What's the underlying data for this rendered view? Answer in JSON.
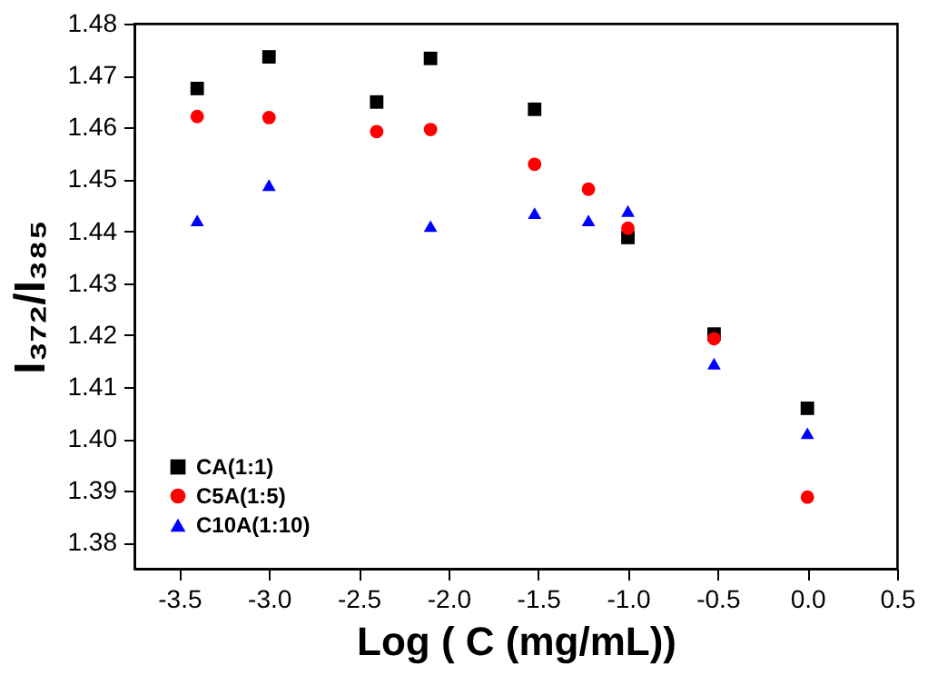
{
  "chart_data": {
    "type": "scatter",
    "xlabel": "Log ( C (mg/mL))",
    "ylabel": "I₃₇₂/I₃₈₅",
    "xlim": [
      -3.75,
      0.5
    ],
    "xticks": [
      {
        "value": -3.5,
        "label": "-3.5"
      },
      {
        "value": -3,
        "label": "-3.0"
      },
      {
        "value": -2.5,
        "label": "-2.5"
      },
      {
        "value": -2,
        "label": "-2.0"
      },
      {
        "value": -1.5,
        "label": "-1.5"
      },
      {
        "value": -1,
        "label": "-1.0"
      },
      {
        "value": -0.5,
        "label": "-0.5"
      },
      {
        "value": 0,
        "label": "0.0"
      },
      {
        "value": 0.5,
        "label": "0.5"
      }
    ],
    "ylim": [
      1.375,
      1.48
    ],
    "yticks": [
      {
        "value": 1.38,
        "label": "1.38"
      },
      {
        "value": 1.39,
        "label": "1.39"
      },
      {
        "value": 1.4,
        "label": "1.40"
      },
      {
        "value": 1.41,
        "label": "1.41"
      },
      {
        "value": 1.42,
        "label": "1.42"
      },
      {
        "value": 1.43,
        "label": "1.43"
      },
      {
        "value": 1.44,
        "label": "1.44"
      },
      {
        "value": 1.45,
        "label": "1.45"
      },
      {
        "value": 1.46,
        "label": "1.46"
      },
      {
        "value": 1.47,
        "label": "1.47"
      },
      {
        "value": 1.48,
        "label": "1.48"
      }
    ],
    "grid": false,
    "legend": "bottom left",
    "series": [
      {
        "name": "CA(1:1)",
        "color": "#000000",
        "marker": "square",
        "x": [
          -3.4,
          -3.0,
          -2.4,
          -2.1,
          -1.52,
          -1.0,
          -0.52,
          0.0
        ],
        "values": [
          1.4675,
          1.4736,
          1.4649,
          1.4733,
          1.4635,
          1.4388,
          1.4202,
          1.4059
        ]
      },
      {
        "name": "C5A(1:5)",
        "color": "#ff0000",
        "marker": "circle",
        "x": [
          -3.4,
          -3.0,
          -2.4,
          -2.1,
          -1.52,
          -1.22,
          -1.0,
          -0.52,
          0.0
        ],
        "values": [
          1.4621,
          1.4619,
          1.4592,
          1.4596,
          1.4529,
          1.4481,
          1.4406,
          1.4193,
          1.3888
        ]
      },
      {
        "name": "C10A(1:10)",
        "color": "#0000ff",
        "marker": "triangle",
        "x": [
          -3.4,
          -3.0,
          -2.1,
          -1.52,
          -1.22,
          -1.0,
          -0.52,
          0.0
        ],
        "values": [
          1.4421,
          1.4489,
          1.441,
          1.4435,
          1.4421,
          1.4439,
          1.4145,
          1.4011
        ]
      }
    ]
  }
}
